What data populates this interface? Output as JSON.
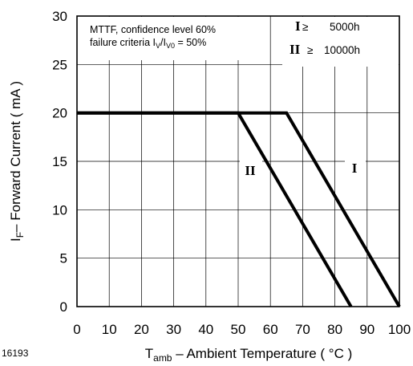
{
  "figure_id": "16193",
  "chart_data": {
    "type": "line",
    "xlabel": {
      "main": "T",
      "sub": "amb",
      "rest": " – Ambient Temperature ( °C )"
    },
    "ylabel": {
      "main": "I",
      "sub": "F",
      "rest": "– Forward Current ( mA )"
    },
    "xlim": [
      0,
      100
    ],
    "ylim": [
      0,
      30
    ],
    "x_ticks": [
      0,
      10,
      20,
      30,
      40,
      50,
      60,
      70,
      80,
      90,
      100
    ],
    "y_ticks": [
      0,
      5,
      10,
      15,
      20,
      25,
      30
    ],
    "grid": true,
    "annotation": {
      "line1": "MTTF, confidence level 60%",
      "line2_prefix": "failure criteria I",
      "line2_sub1": "V",
      "line2_mid": "/I",
      "line2_sub2": "V0",
      "line2_suffix": " = 50%"
    },
    "legend": [
      {
        "symbol": "I",
        "relation": "≥",
        "value": "5000h"
      },
      {
        "symbol": "II",
        "relation": "≥",
        "value": "10000h"
      }
    ],
    "series": [
      {
        "name": "I",
        "x": [
          0,
          65,
          100
        ],
        "y": [
          20,
          20,
          0
        ]
      },
      {
        "name": "II",
        "x": [
          0,
          50,
          85
        ],
        "y": [
          20,
          20,
          0
        ]
      }
    ]
  }
}
